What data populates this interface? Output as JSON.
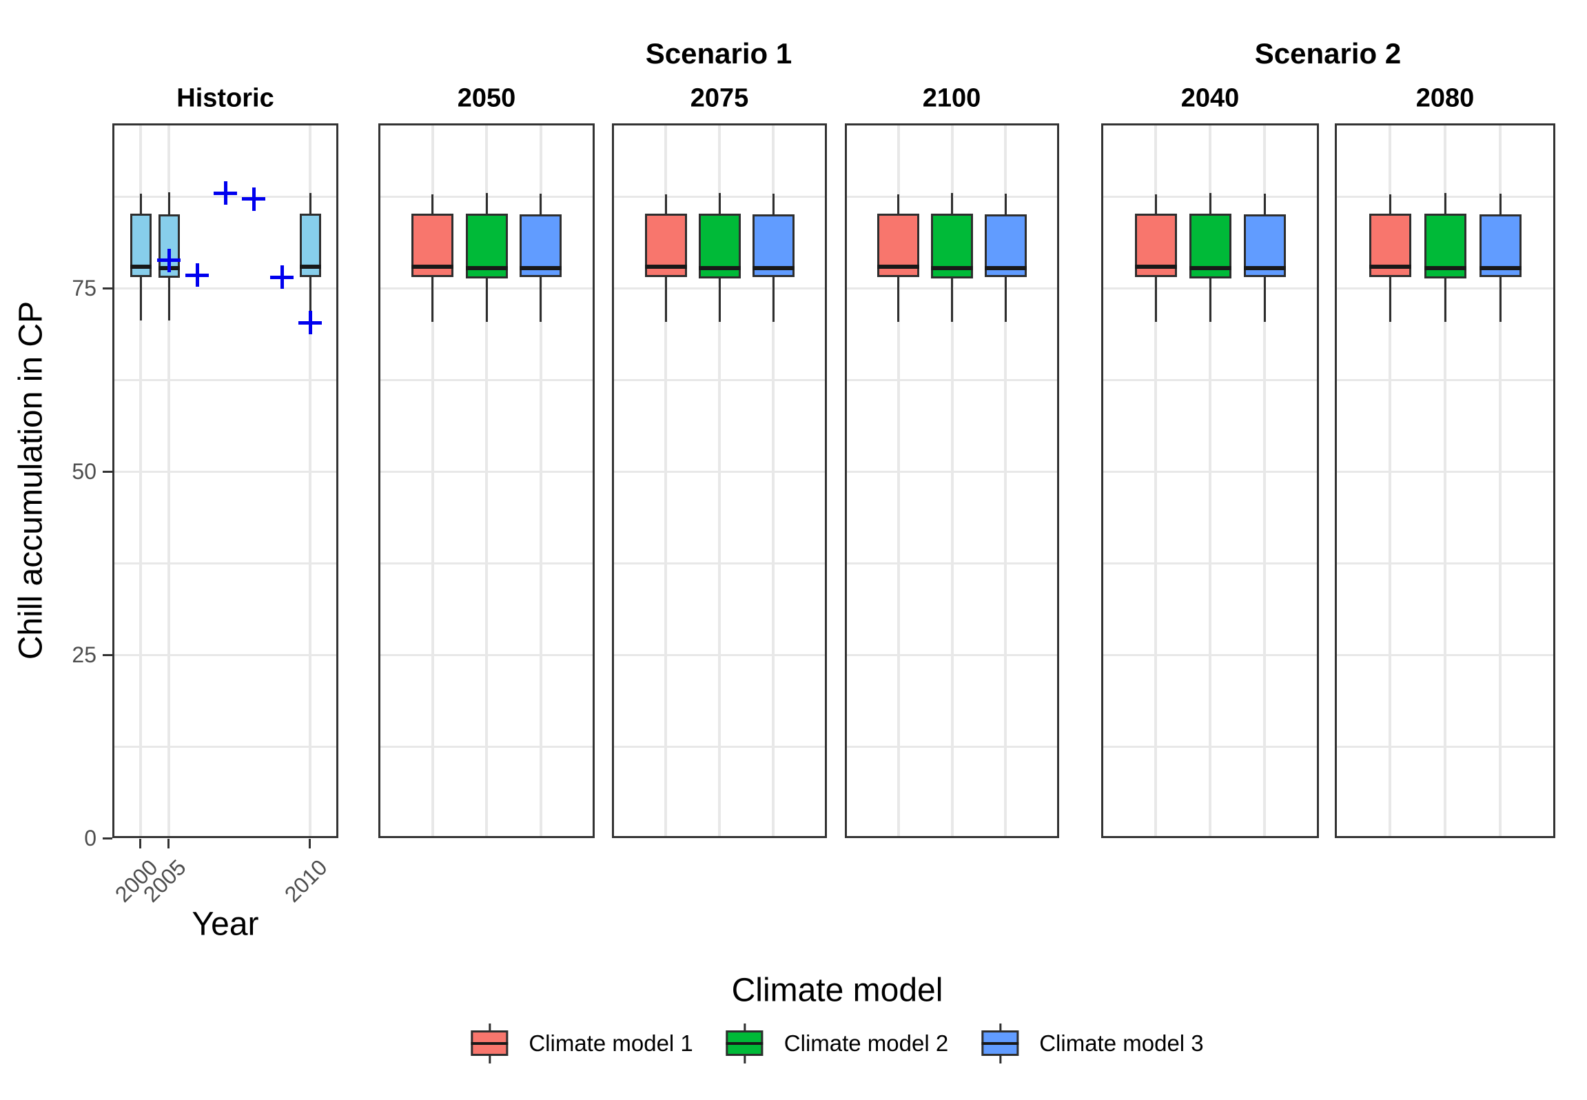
{
  "chart_data": {
    "type": "boxplot",
    "ylabel": "Chill accumulation in CP",
    "xlabel": "Year",
    "y_tick_labels": [
      "0",
      "25",
      "50",
      "75"
    ],
    "y_tick_values": [
      0,
      25,
      50,
      75
    ],
    "y_range_displayed": [
      0,
      97.5
    ],
    "grid_cp": [
      12.5,
      25,
      37.5,
      50,
      62.5,
      75,
      87.5
    ],
    "grid_color": "#E8E8E8",
    "panel_border_color": "#333333",
    "facet_groups": [
      {
        "label": "",
        "panels": [
          "Historic"
        ]
      },
      {
        "label": "Scenario 1",
        "panels": [
          "2050",
          "2075",
          "2100"
        ]
      },
      {
        "label": "Scenario 2",
        "panels": [
          "2040",
          "2080"
        ]
      }
    ],
    "panels": [
      {
        "title": "Historic",
        "kind": "historic"
      },
      {
        "title": "2050",
        "kind": "models"
      },
      {
        "title": "2075",
        "kind": "models"
      },
      {
        "title": "2100",
        "kind": "models"
      },
      {
        "title": "2040",
        "kind": "models"
      },
      {
        "title": "2080",
        "kind": "models"
      }
    ],
    "historic": {
      "box_color": "#87CEEB",
      "x_slots": 8,
      "boxes": [
        {
          "slot": 1,
          "year": "2000",
          "low": 70.6,
          "q1": 76.5,
          "median": 77.9,
          "q3": 85.2,
          "high": 87.9
        },
        {
          "slot": 2,
          "year": "2005",
          "low": 70.6,
          "q1": 76.4,
          "median": 77.8,
          "q3": 85.1,
          "high": 88.1
        },
        {
          "slot": 7,
          "year": "2010",
          "low": 69.2,
          "q1": 76.5,
          "median": 77.9,
          "q3": 85.2,
          "high": 88.0
        }
      ],
      "x_ticks": [
        {
          "slot": 1,
          "label": "2000"
        },
        {
          "slot": 2,
          "label": "2005"
        },
        {
          "slot": 7,
          "label": "2010"
        }
      ],
      "points": [
        {
          "slot": 2,
          "cp": 78.8
        },
        {
          "slot": 3,
          "cp": 76.8
        },
        {
          "slot": 4,
          "cp": 88.0
        },
        {
          "slot": 5,
          "cp": 87.2
        },
        {
          "slot": 6,
          "cp": 76.5
        },
        {
          "slot": 7,
          "cp": 70.3
        }
      ],
      "point_marker": "plus",
      "point_color": "#0000EE"
    },
    "models": [
      {
        "name": "Climate model 1",
        "color": "#F8766D",
        "stats": {
          "low": 70.4,
          "q1": 76.5,
          "median": 77.9,
          "q3": 85.2,
          "high": 87.8
        }
      },
      {
        "name": "Climate model 2",
        "color": "#00BA38",
        "stats": {
          "low": 70.4,
          "q1": 76.3,
          "median": 77.8,
          "q3": 85.2,
          "high": 88.0
        }
      },
      {
        "name": "Climate model 3",
        "color": "#619CFF",
        "stats": {
          "low": 70.4,
          "q1": 76.5,
          "median": 77.8,
          "q3": 85.1,
          "high": 87.9
        }
      }
    ],
    "legend": {
      "title": "Climate model",
      "entries": [
        "Climate model 1",
        "Climate model 2",
        "Climate model 3"
      ]
    }
  }
}
